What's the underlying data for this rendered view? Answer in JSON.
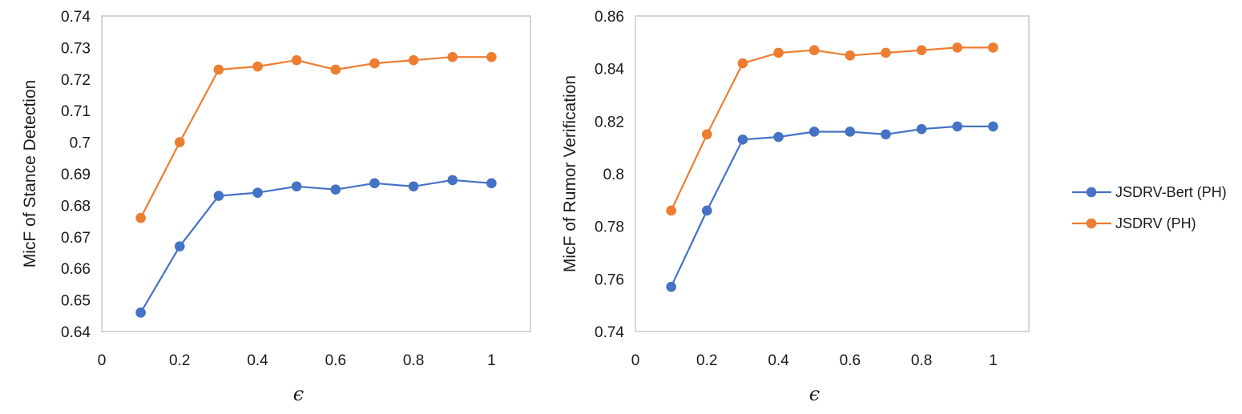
{
  "chart_data": [
    {
      "type": "line",
      "title": "",
      "xlabel": "ϵ",
      "ylabel": "MicF of Stance Detection",
      "xlim": [
        0,
        1.1
      ],
      "ylim": [
        0.64,
        0.74
      ],
      "x_ticks": [
        0,
        0.2,
        0.4,
        0.6,
        0.8,
        1
      ],
      "x_tick_labels": [
        "0",
        "0.2",
        "0.4",
        "0.6",
        "0.8",
        "1"
      ],
      "y_ticks": [
        0.64,
        0.65,
        0.66,
        0.67,
        0.68,
        0.69,
        0.7,
        0.71,
        0.72,
        0.73,
        0.74
      ],
      "y_tick_labels": [
        "0.64",
        "0.65",
        "0.66",
        "0.67",
        "0.68",
        "0.69",
        "0.7",
        "0.71",
        "0.72",
        "0.73",
        "0.74"
      ],
      "grid": false,
      "x": [
        0.1,
        0.2,
        0.3,
        0.4,
        0.5,
        0.6,
        0.7,
        0.8,
        0.9,
        1.0
      ],
      "series": [
        {
          "name": "JSDRV-Bert (PH)",
          "color": "#4472C4",
          "values": [
            0.646,
            0.667,
            0.683,
            0.684,
            0.686,
            0.685,
            0.687,
            0.686,
            0.688,
            0.687
          ]
        },
        {
          "name": "JSDRV (PH)",
          "color": "#ED7D31",
          "values": [
            0.676,
            0.7,
            0.723,
            0.724,
            0.726,
            0.723,
            0.725,
            0.726,
            0.727,
            0.727
          ]
        }
      ]
    },
    {
      "type": "line",
      "title": "",
      "xlabel": "ϵ",
      "ylabel": "MicF of Rumor Verification",
      "xlim": [
        0,
        1.1
      ],
      "ylim": [
        0.74,
        0.86
      ],
      "x_ticks": [
        0,
        0.2,
        0.4,
        0.6,
        0.8,
        1
      ],
      "x_tick_labels": [
        "0",
        "0.2",
        "0.4",
        "0.6",
        "0.8",
        "1"
      ],
      "y_ticks": [
        0.74,
        0.76,
        0.78,
        0.8,
        0.82,
        0.84,
        0.86
      ],
      "y_tick_labels": [
        "0.74",
        "0.76",
        "0.78",
        "0.8",
        "0.82",
        "0.84",
        "0.86"
      ],
      "grid": false,
      "legend": "right",
      "x": [
        0.1,
        0.2,
        0.3,
        0.4,
        0.5,
        0.6,
        0.7,
        0.8,
        0.9,
        1.0
      ],
      "series": [
        {
          "name": "JSDRV-Bert (PH)",
          "color": "#4472C4",
          "values": [
            0.757,
            0.786,
            0.813,
            0.814,
            0.816,
            0.816,
            0.815,
            0.817,
            0.818,
            0.818
          ]
        },
        {
          "name": "JSDRV (PH)",
          "color": "#ED7D31",
          "values": [
            0.786,
            0.815,
            0.842,
            0.846,
            0.847,
            0.845,
            0.846,
            0.847,
            0.848,
            0.848
          ]
        }
      ]
    }
  ],
  "legend": {
    "entries": [
      {
        "label": "JSDRV-Bert (PH)",
        "color": "#4472C4"
      },
      {
        "label": "JSDRV (PH)",
        "color": "#ED7D31"
      }
    ]
  },
  "style": {
    "axis_color": "#bfbfbf",
    "text_color": "#1a1a1a"
  }
}
